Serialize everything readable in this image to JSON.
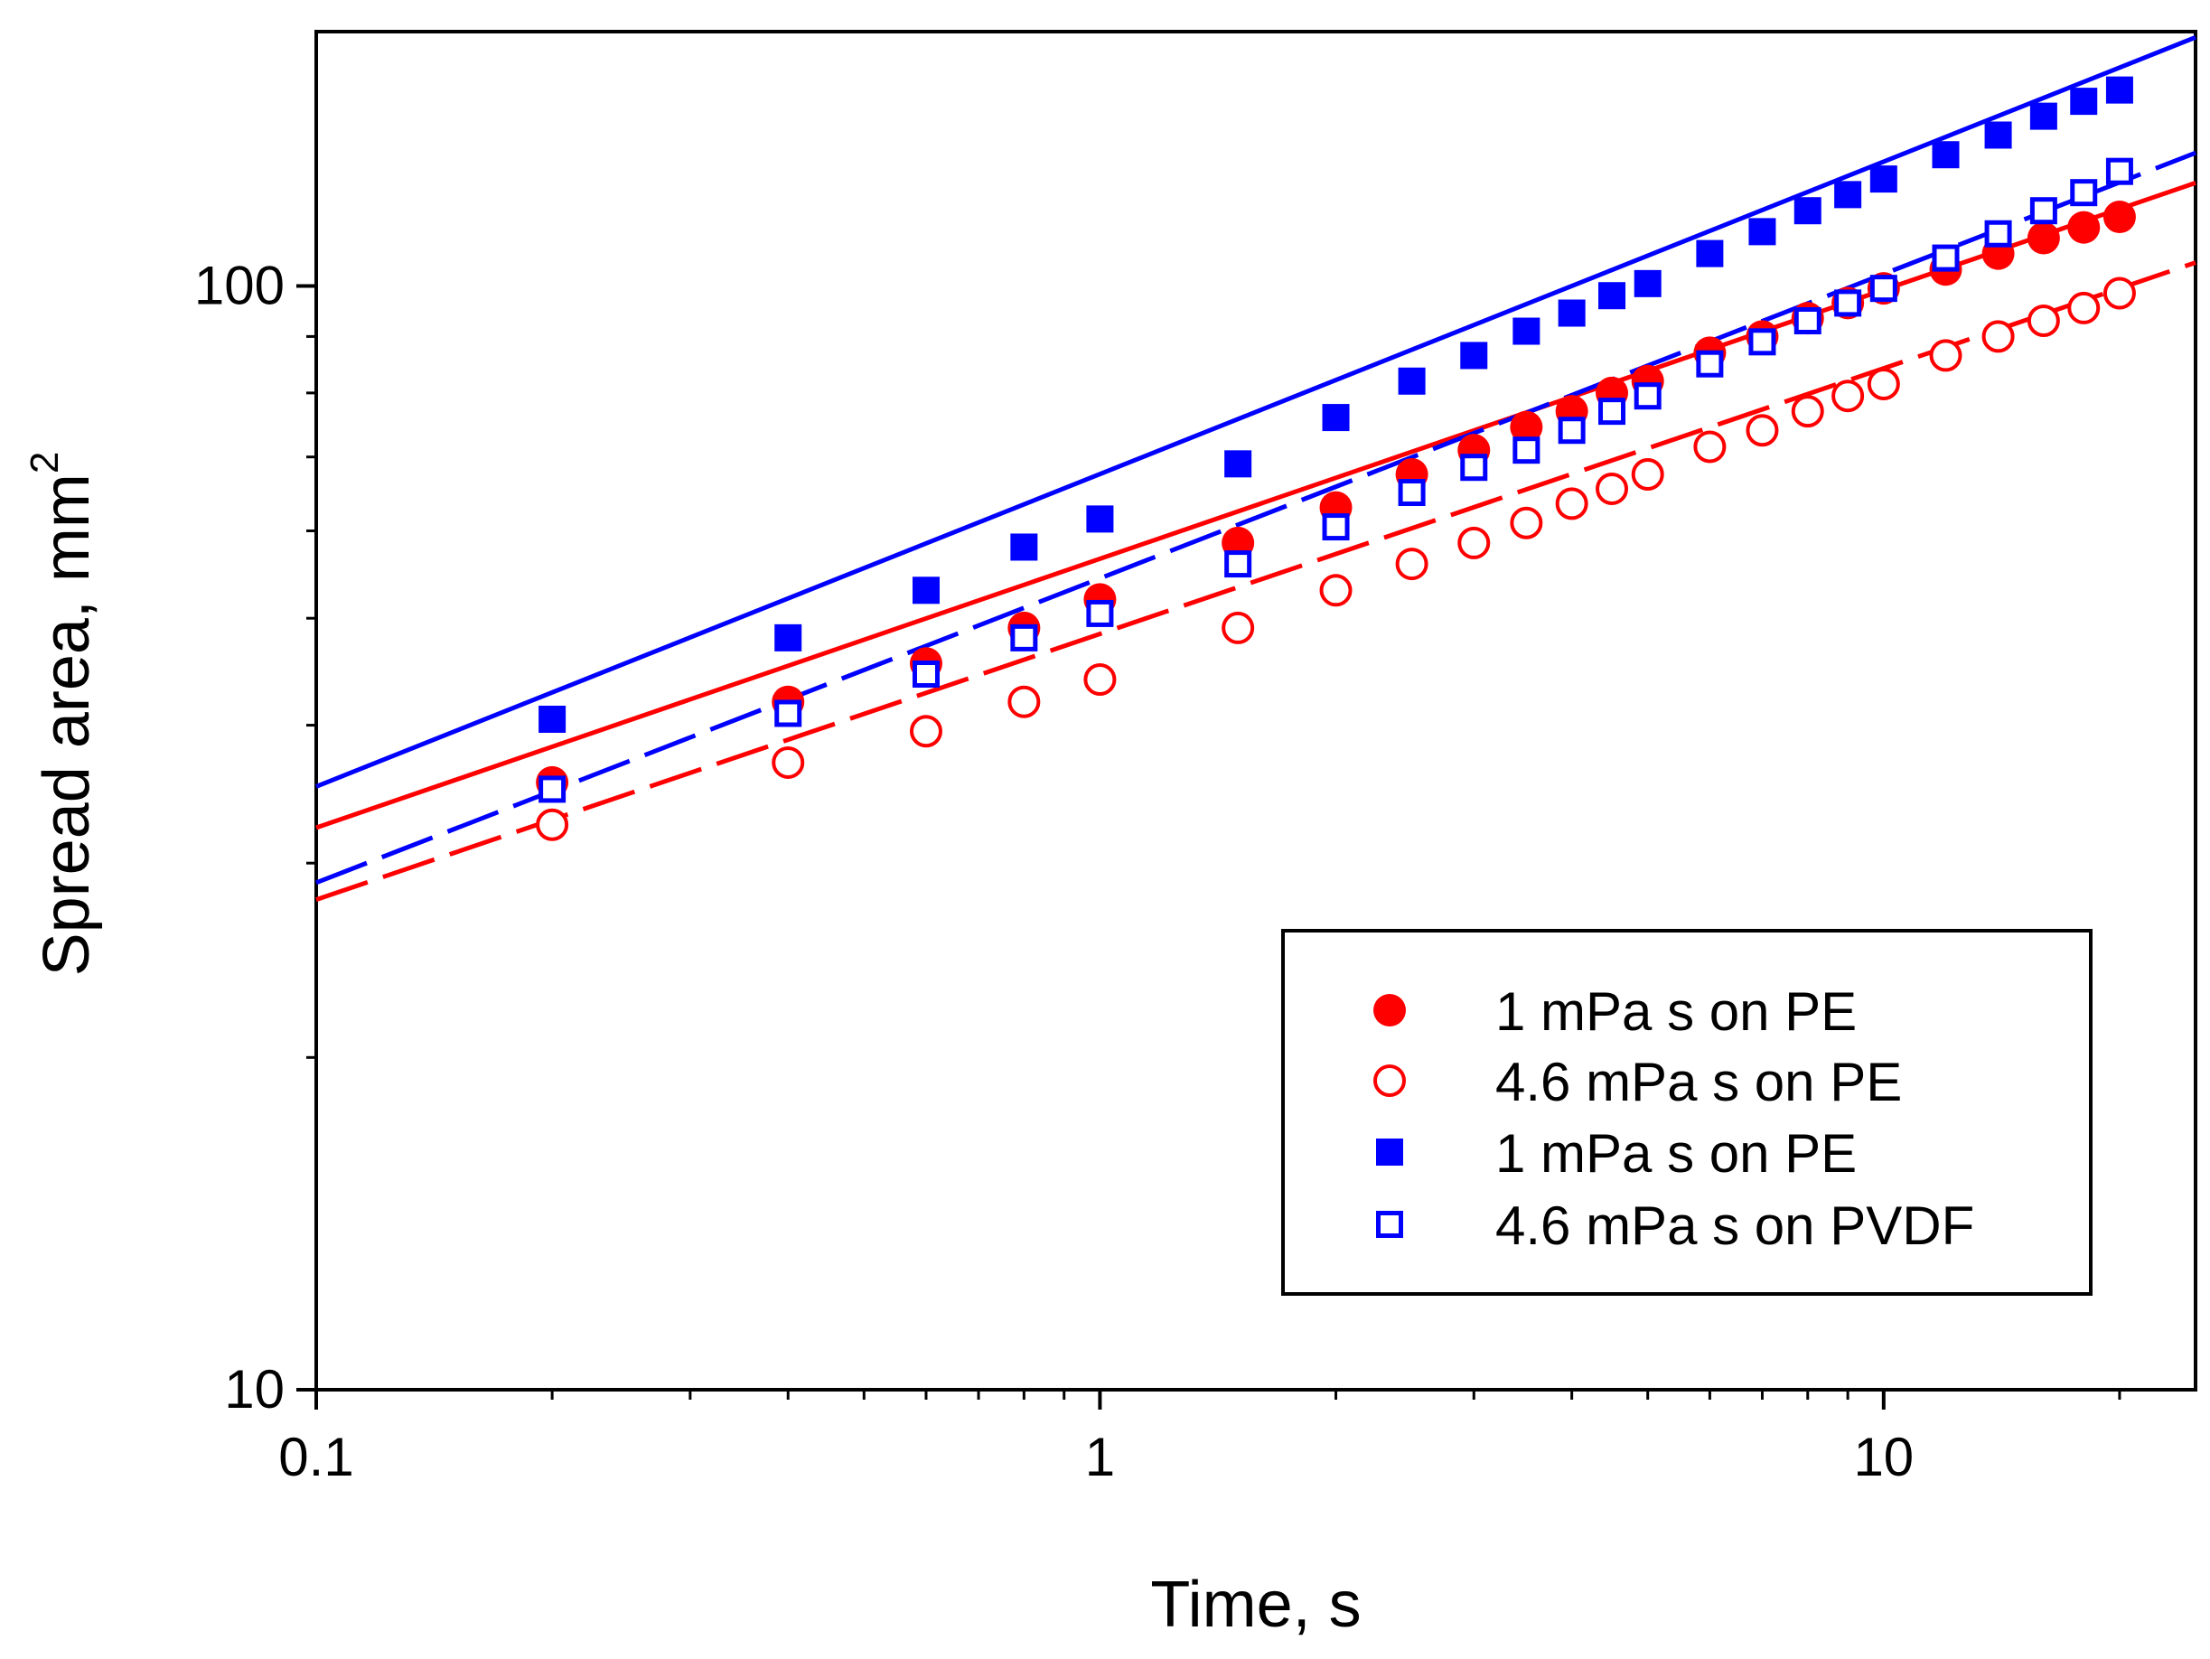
{
  "chart_data": {
    "type": "scatter",
    "xlabel": "Time, s",
    "ylabel": "Spread area, mm",
    "ylabel_superscript": "2",
    "xscale": "log",
    "yscale": "log",
    "xlim": [
      0.1,
      25
    ],
    "ylim": [
      10,
      170
    ],
    "xticks": [
      0.1,
      1,
      10
    ],
    "xtick_labels": [
      "0.1",
      "1",
      "10"
    ],
    "yticks": [
      10,
      100
    ],
    "ytick_labels": [
      "10",
      "100"
    ],
    "grid": false,
    "legend_position": "bottom-right",
    "series": [
      {
        "name": "1 mPa s on PE",
        "color": "#ff0000",
        "marker": "filled-circle",
        "x": [
          0.2,
          0.4,
          0.6,
          0.8,
          1.0,
          1.5,
          2.0,
          2.5,
          3.0,
          3.5,
          4.0,
          4.5,
          5.0,
          6.0,
          7.0,
          8.0,
          9.0,
          10.0,
          12.0,
          14.0,
          16.0,
          18.0,
          20.0
        ],
        "y": [
          35.5,
          42,
          45.5,
          49,
          52,
          58.5,
          63,
          67.5,
          71,
          74.5,
          77,
          80,
          82,
          87,
          90,
          93.5,
          96.5,
          99.5,
          103.5,
          107,
          110.5,
          113,
          115.5
        ],
        "fit": {
          "line": "solid",
          "x": [
            0.1,
            25
          ],
          "y": [
            32.3,
            124
          ]
        }
      },
      {
        "name": "4.6 mPa s on PE",
        "color": "#ff0000",
        "marker": "open-circle",
        "x": [
          0.2,
          0.4,
          0.6,
          0.8,
          1.0,
          1.5,
          2.0,
          2.5,
          3.0,
          3.5,
          4.0,
          4.5,
          5.0,
          6.0,
          7.0,
          8.0,
          9.0,
          10.0,
          12.0,
          14.0,
          16.0,
          18.0,
          20.0
        ],
        "y": [
          32.5,
          37,
          39.5,
          42,
          44,
          49,
          53,
          56,
          58.5,
          61,
          63.5,
          65.5,
          67.5,
          71.5,
          74,
          77,
          79.5,
          81.5,
          86.5,
          90,
          93,
          95.5,
          98.5
        ],
        "fit": {
          "line": "dashed",
          "x": [
            0.1,
            25
          ],
          "y": [
            27.8,
            105
          ]
        }
      },
      {
        "name": "1 mPa s on PE",
        "color": "#0000ff",
        "marker": "filled-square",
        "x": [
          0.2,
          0.4,
          0.6,
          0.8,
          1.0,
          1.5,
          2.0,
          2.5,
          3.0,
          3.5,
          4.0,
          4.5,
          5.0,
          6.0,
          7.0,
          8.0,
          9.0,
          10.0,
          12.0,
          14.0,
          16.0,
          18.0,
          20.0
        ],
        "y": [
          40.5,
          48,
          53,
          58,
          61.5,
          69,
          76,
          82,
          86.5,
          91,
          94.5,
          98,
          100.5,
          107,
          112,
          117,
          121,
          125,
          131.5,
          137,
          142.5,
          147,
          150.5
        ],
        "fit": {
          "line": "solid",
          "x": [
            0.1,
            25
          ],
          "y": [
            35.2,
            168
          ]
        }
      },
      {
        "name": "4.6 mPa s on PVDF",
        "color": "#0000ff",
        "marker": "open-square",
        "x": [
          0.2,
          0.4,
          0.6,
          0.8,
          1.0,
          1.5,
          2.0,
          2.5,
          3.0,
          3.5,
          4.0,
          4.5,
          5.0,
          6.0,
          7.0,
          8.0,
          9.0,
          10.0,
          12.0,
          14.0,
          16.0,
          18.0,
          20.0
        ],
        "y": [
          35,
          41,
          44.5,
          48,
          50.5,
          56,
          60.5,
          65,
          68.5,
          71,
          74,
          77,
          79.5,
          85,
          89,
          93,
          96.5,
          99.5,
          106,
          111.5,
          117,
          121.5,
          127
        ],
        "fit": {
          "line": "dashed",
          "x": [
            0.1,
            25
          ],
          "y": [
            28.8,
            132
          ]
        }
      }
    ]
  }
}
